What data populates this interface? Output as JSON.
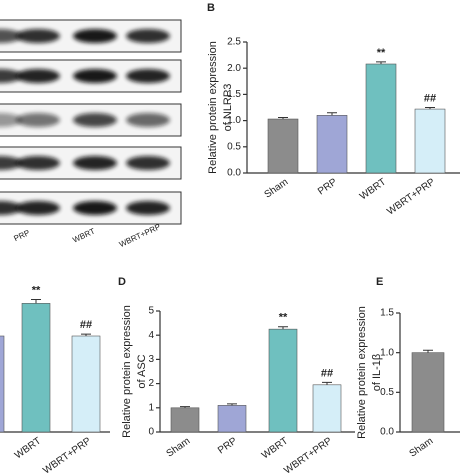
{
  "blot": {
    "lanes": [
      "PRP",
      "WBRT",
      "WBRT+PRP"
    ]
  },
  "chart_data": [
    {
      "type": "bar",
      "categories": [
        null,
        "WBRT",
        "WBRT+PRP"
      ],
      "values": [
        1.0,
        1.34,
        1.0
      ],
      "errors": [
        0.03,
        0.04,
        0.02
      ],
      "colors": [
        "#9fa6d6",
        "#6fc0bf",
        "#d5eef8"
      ],
      "annotations": [
        null,
        "**",
        "##"
      ],
      "ylim": [
        0,
        2
      ]
    },
    {
      "type": "bar",
      "panel_label": "B",
      "ylabel": [
        "Relative protein expression",
        "of NLRP3"
      ],
      "categories": [
        "Sham",
        "PRP",
        "WBRT",
        "WBRT+PRP"
      ],
      "values": [
        1.03,
        1.1,
        2.08,
        1.22
      ],
      "errors": [
        0.03,
        0.05,
        0.04,
        0.03
      ],
      "colors": [
        "#8c8c8c",
        "#9fa6d6",
        "#6fc0bf",
        "#d5eef8"
      ],
      "annotations": [
        null,
        null,
        "**",
        "##"
      ],
      "ylim": [
        0,
        2.5
      ],
      "yticks": [
        {
          "value": 0,
          "label": "0.0"
        },
        {
          "value": 0.5,
          "label": "0.5"
        },
        {
          "value": 1,
          "label": "1.0"
        },
        {
          "value": 1.5,
          "label": "1.5"
        },
        {
          "value": 2,
          "label": "2.0"
        },
        {
          "value": 2.5,
          "label": "2.5"
        }
      ]
    },
    {
      "type": "bar",
      "panel_label": "D",
      "ylabel": [
        "Relative protein expression",
        "of ASC"
      ],
      "categories": [
        "Sham",
        "PRP",
        "WBRT",
        "WBRT+PRP"
      ],
      "values": [
        1.0,
        1.1,
        4.25,
        1.95
      ],
      "errors": [
        0.05,
        0.06,
        0.1,
        0.1
      ],
      "colors": [
        "#8c8c8c",
        "#9fa6d6",
        "#6fc0bf",
        "#d5eef8"
      ],
      "annotations": [
        null,
        null,
        "**",
        "##"
      ],
      "ylim": [
        0,
        5
      ],
      "yticks": [
        0,
        1,
        2,
        3,
        4,
        5
      ]
    },
    {
      "type": "bar",
      "panel_label": "E",
      "ylabel": [
        "Relative protein expression",
        "of IL-1β"
      ],
      "categories": [
        "Sham"
      ],
      "values": [
        1.0
      ],
      "errors": [
        0.03
      ],
      "colors": [
        "#8c8c8c"
      ],
      "ylim": [
        0,
        1.5
      ],
      "yticks": [
        {
          "value": 0,
          "label": "0.0"
        },
        {
          "value": 0.5,
          "label": "0.5"
        },
        {
          "value": 1,
          "label": "1.0"
        },
        {
          "value": 1.5,
          "label": "1.5"
        }
      ]
    }
  ]
}
